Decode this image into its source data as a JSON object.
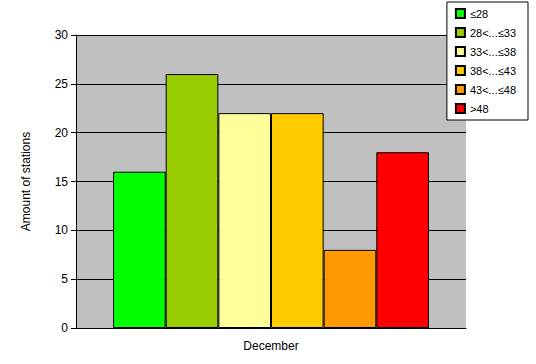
{
  "chart_data": {
    "type": "bar",
    "categories": [
      "December"
    ],
    "ylabel": "Amount of stations",
    "series": [
      {
        "name": "≤28",
        "color": "#00ff00",
        "values": [
          16
        ]
      },
      {
        "name": "28<...≤33",
        "color": "#99cc00",
        "values": [
          26
        ]
      },
      {
        "name": "33<...≤38",
        "color": "#ffff99",
        "values": [
          22
        ]
      },
      {
        "name": "38<...≤43",
        "color": "#ffcc00",
        "values": [
          22
        ]
      },
      {
        "name": "43<...≤48",
        "color": "#ff9900",
        "values": [
          8
        ]
      },
      {
        "name": ">48",
        "color": "#ff0000",
        "values": [
          18
        ]
      }
    ],
    "ylim": [
      0,
      30
    ],
    "yticks": [
      0,
      5,
      10,
      15,
      20,
      25,
      30
    ],
    "grid": true,
    "legend": "top-right"
  }
}
